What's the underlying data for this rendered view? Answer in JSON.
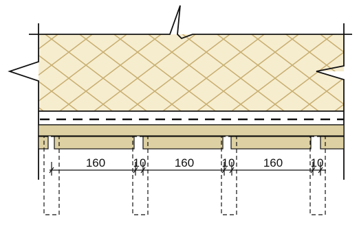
{
  "colors": {
    "insulation_fill": "#f6edcf",
    "hatch": "#c8ae70",
    "board_fill": "#ddd0a2",
    "line": "#111111"
  },
  "dimensions": {
    "d1": "160",
    "g1": "10",
    "d2": "160",
    "g2": "10",
    "d3": "160",
    "g3": "10"
  }
}
